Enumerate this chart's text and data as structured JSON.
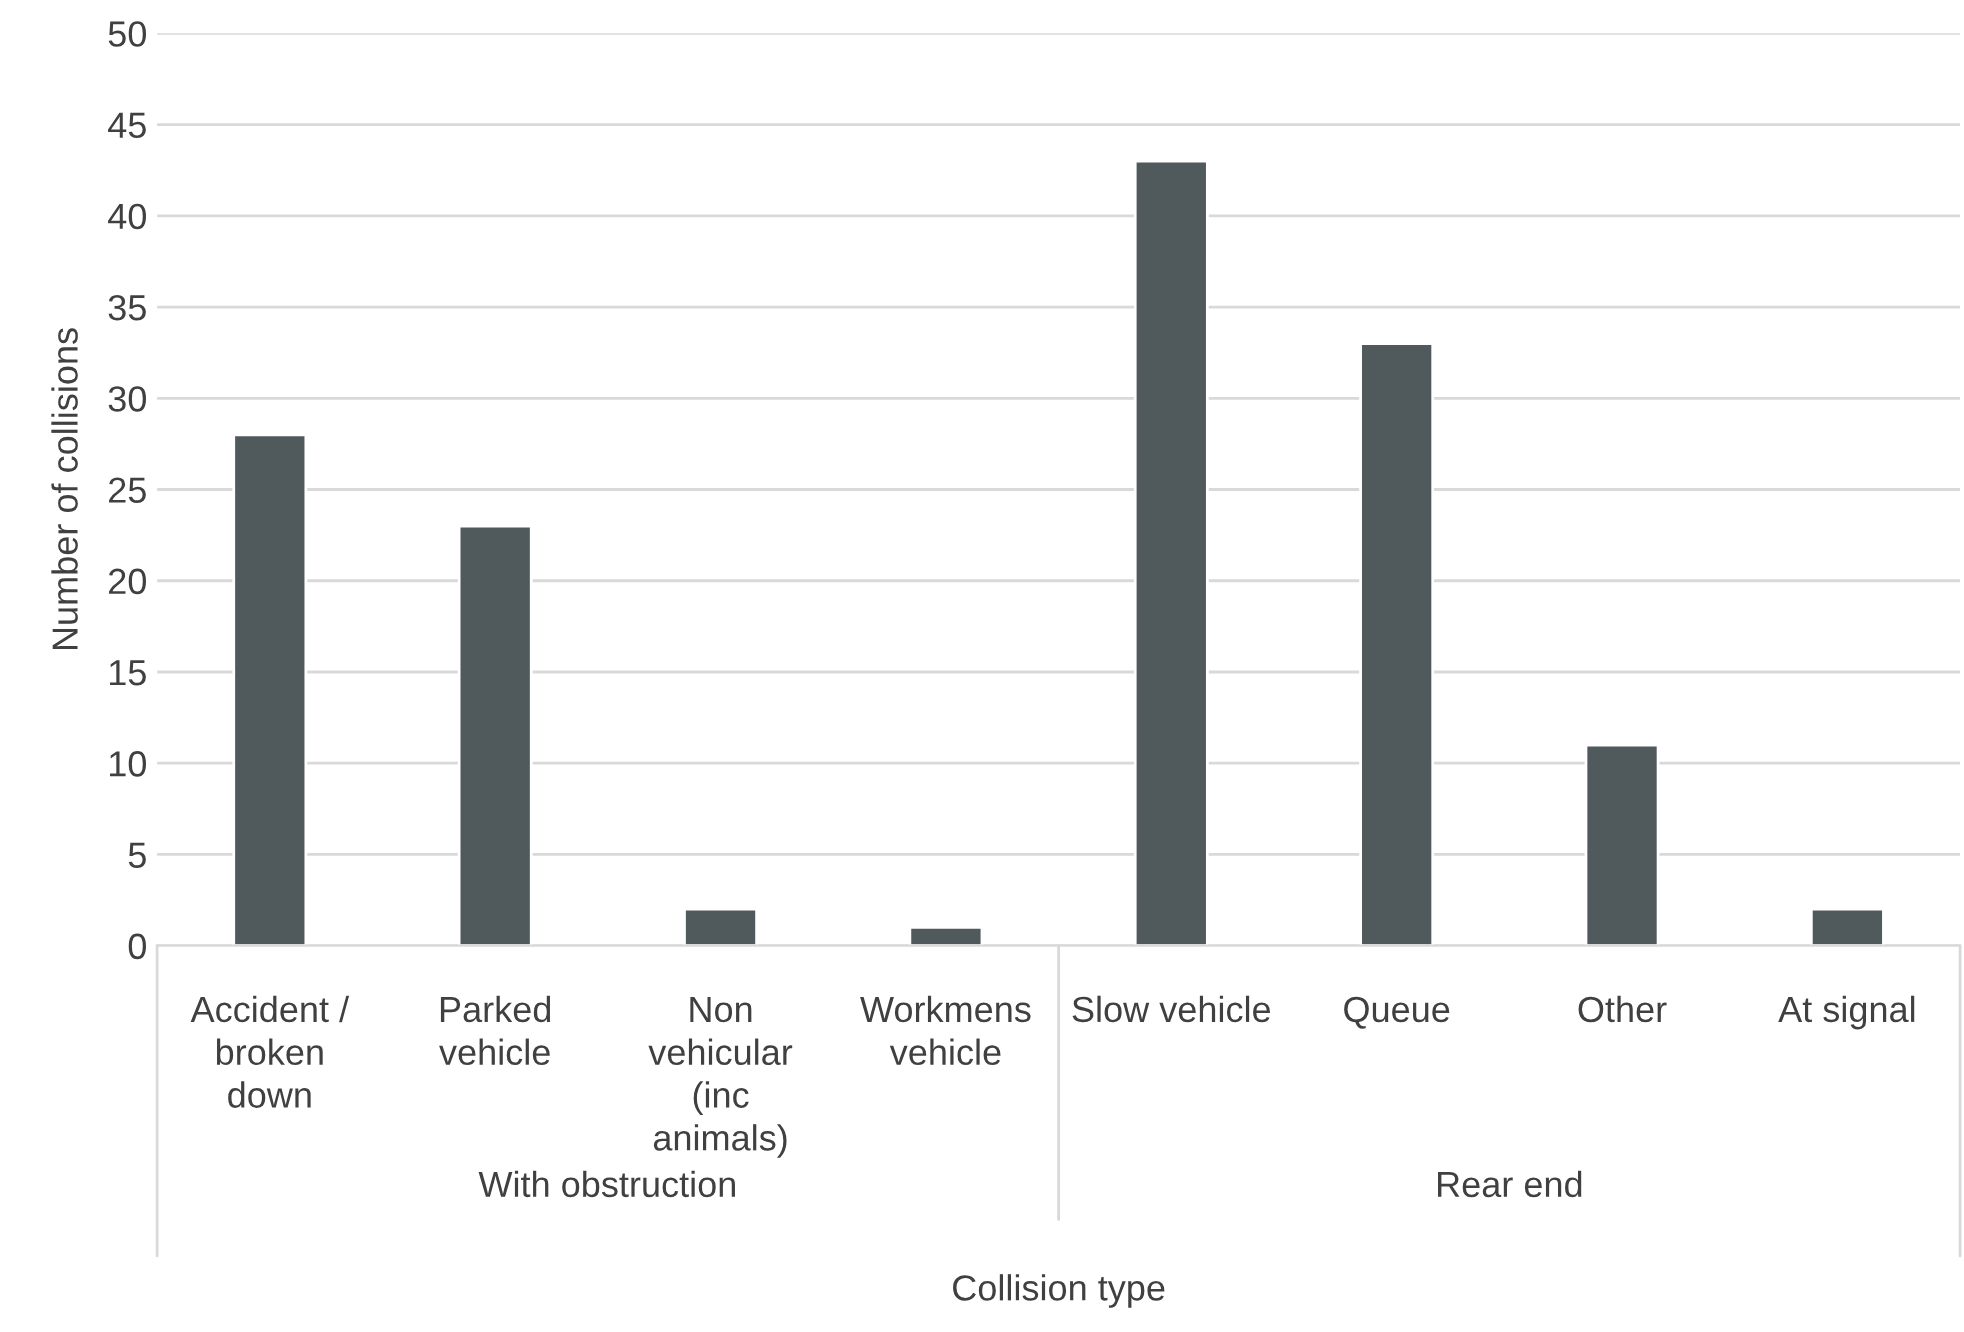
{
  "chart_data": {
    "type": "bar",
    "xlabel": "Collision type",
    "ylabel": "Number of collisions",
    "categories": [
      "Accident /\nbroken\ndown",
      "Parked\nvehicle",
      "Non\nvehicular\n(inc\nanimals)",
      "Workmens\nvehicle",
      "Slow vehicle",
      "Queue",
      "Other",
      "At signal"
    ],
    "values": [
      28,
      23,
      2,
      1,
      43,
      33,
      11,
      2
    ],
    "color": "#50595b",
    "ylim": [
      0,
      50
    ],
    "yticks": [
      0,
      5,
      10,
      15,
      20,
      25,
      30,
      35,
      40,
      45,
      50
    ],
    "grid": "y",
    "annotations": [
      "With obstruction",
      "Rear end"
    ]
  }
}
